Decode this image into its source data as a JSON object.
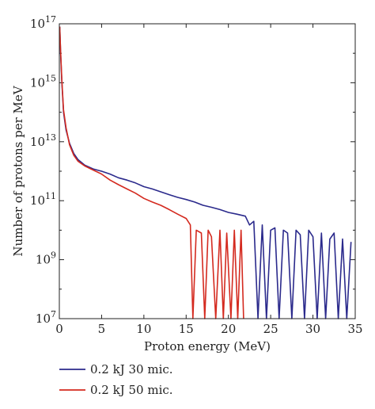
{
  "chart_data": {
    "type": "line",
    "title": "",
    "xlabel": "Proton energy (MeV)",
    "ylabel": "Number of protons per MeV",
    "xlim": [
      0,
      35
    ],
    "ylim": [
      10000000.0,
      1e+17
    ],
    "y_scale": "log",
    "x_ticks": [
      0,
      5,
      10,
      15,
      20,
      25,
      30,
      35
    ],
    "y_ticks": [
      {
        "value": 10000000.0,
        "base": "10",
        "exp": "7"
      },
      {
        "value": 1000000000.0,
        "base": "10",
        "exp": "9"
      },
      {
        "value": 100000000000.0,
        "base": "10",
        "exp": "11"
      },
      {
        "value": 10000000000000.0,
        "base": "10",
        "exp": "13"
      },
      {
        "value": 1000000000000000.0,
        "base": "10",
        "exp": "15"
      },
      {
        "value": 1e+17,
        "base": "10",
        "exp": "17"
      }
    ],
    "grid": false,
    "legend_position": "bottom-left",
    "series": [
      {
        "name": "0.2 kJ 30 mic.",
        "color": "#2b2a8c",
        "x": [
          0.05,
          0.15,
          0.3,
          0.5,
          0.8,
          1.2,
          1.7,
          2.2,
          3.0,
          4.0,
          5.0,
          6.0,
          7.0,
          8.0,
          9.0,
          10.0,
          11.0,
          12.0,
          13.0,
          14.0,
          15.0,
          16.0,
          17.0,
          18.0,
          19.0,
          20.0,
          21.0,
          22.0,
          22.5,
          23.0,
          23.5,
          24.0,
          24.5,
          25.0,
          25.5,
          26.0,
          26.5,
          27.0,
          27.5,
          28.0,
          28.5,
          29.0,
          29.5,
          30.0,
          30.5,
          31.0,
          31.5,
          32.0,
          32.5,
          33.0,
          33.5,
          34.0,
          34.5
        ],
        "y": [
          8e+16,
          1e+16,
          1000000000000000.0,
          100000000000000.0,
          25000000000000.0,
          9000000000000.0,
          4000000000000.0,
          2500000000000.0,
          1600000000000.0,
          1200000000000.0,
          1000000000000.0,
          800000000000.0,
          600000000000.0,
          500000000000.0,
          400000000000.0,
          300000000000.0,
          250000000000.0,
          200000000000.0,
          160000000000.0,
          130000000000.0,
          110000000000.0,
          90000000000.0,
          70000000000.0,
          60000000000.0,
          50000000000.0,
          40000000000.0,
          35000000000.0,
          30000000000.0,
          15000000000.0,
          20000000000.0,
          10000000.0,
          15000000000.0,
          10000000.0,
          10000000000.0,
          12000000000.0,
          10000000.0,
          10000000000.0,
          8000000000.0,
          10000000.0,
          10000000000.0,
          7000000000.0,
          10000000.0,
          10000000000.0,
          6000000000.0,
          10000000.0,
          8000000000.0,
          10000000.0,
          5000000000.0,
          8000000000.0,
          10000000.0,
          5000000000.0,
          10000000.0,
          4000000000.0
        ]
      },
      {
        "name": "0.2 kJ 50 mic.",
        "color": "#d42a1f",
        "x": [
          0.05,
          0.15,
          0.3,
          0.5,
          0.8,
          1.2,
          1.7,
          2.2,
          3.0,
          4.0,
          5.0,
          6.0,
          7.0,
          8.0,
          9.0,
          10.0,
          11.0,
          12.0,
          13.0,
          14.0,
          15.0,
          15.5,
          15.8,
          16.2,
          16.8,
          17.2,
          17.6,
          18.0,
          18.5,
          19.0,
          19.4,
          19.8,
          20.3,
          20.7,
          21.1,
          21.5,
          21.8
        ],
        "y": [
          8e+16,
          1.2e+16,
          1200000000000000.0,
          120000000000000.0,
          30000000000000.0,
          8000000000000.0,
          3500000000000.0,
          2200000000000.0,
          1500000000000.0,
          1100000000000.0,
          800000000000.0,
          500000000000.0,
          350000000000.0,
          250000000000.0,
          180000000000.0,
          120000000000.0,
          90000000000.0,
          70000000000.0,
          50000000000.0,
          35000000000.0,
          25000000000.0,
          15000000000.0,
          10000000.0,
          10000000000.0,
          8000000000.0,
          10000000.0,
          10000000000.0,
          6000000000.0,
          10000000.0,
          10000000000.0,
          10000000.0,
          8000000000.0,
          10000000.0,
          10000000000.0,
          10000000.0,
          10000000000.0,
          10000000.0
        ]
      }
    ]
  }
}
